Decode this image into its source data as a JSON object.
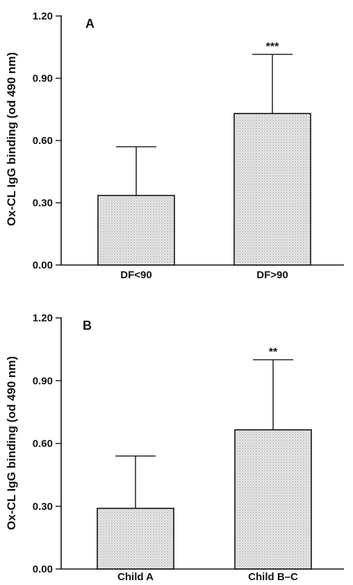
{
  "chart_data": [
    {
      "type": "bar",
      "panel_label": "A",
      "ylabel": "Ox-CL IgG binding (od 490 nm)",
      "ylim": [
        0,
        1.2
      ],
      "yticks": [
        "0.00",
        "0.30",
        "0.60",
        "0.90",
        "1.20"
      ],
      "categories": [
        "DF<90",
        "DF>90"
      ],
      "values": [
        0.335,
        0.73
      ],
      "errors": [
        0.235,
        0.285
      ],
      "significance": [
        "",
        "***"
      ]
    },
    {
      "type": "bar",
      "panel_label": "B",
      "ylabel": "Ox-CL IgG binding (od 490 nm)",
      "ylim": [
        0,
        1.2
      ],
      "yticks": [
        "0.00",
        "0.30",
        "0.60",
        "0.90",
        "1.20"
      ],
      "categories": [
        "Child A",
        "Child B–C"
      ],
      "values": [
        0.29,
        0.665
      ],
      "errors": [
        0.25,
        0.335
      ],
      "significance": [
        "",
        "**"
      ]
    }
  ]
}
